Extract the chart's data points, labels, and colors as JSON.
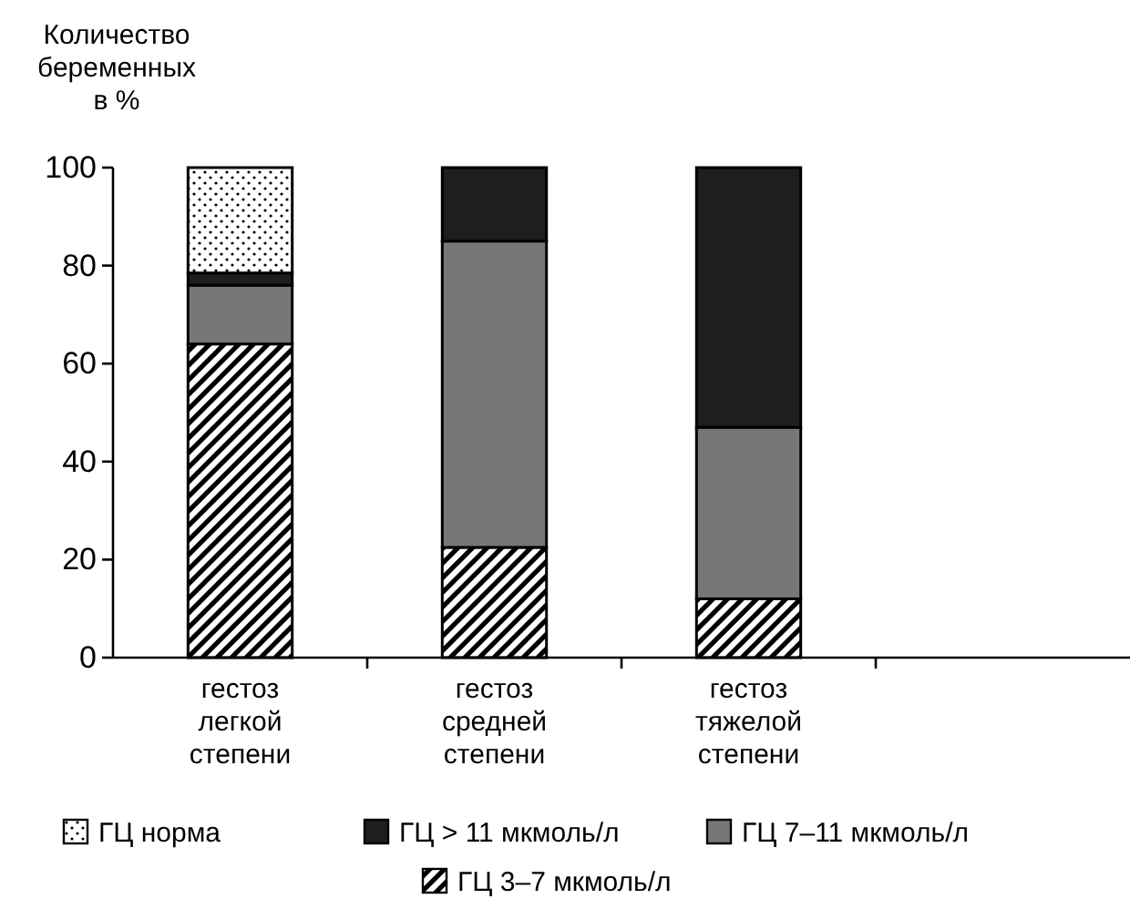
{
  "chart_data": {
    "type": "bar",
    "stacked": true,
    "ylabel": "Количество беременных в %",
    "categories": [
      "гестоз легкой степени",
      "гестоз средней степени",
      "гестоз тяжелой степени",
      null
    ],
    "ylim": [
      0,
      100
    ],
    "yticks": [
      0,
      20,
      40,
      60,
      80,
      100
    ],
    "grid": false,
    "legend": "bottom",
    "series": [
      {
        "name": "ГЦ 3–7 мкмоль/л",
        "color": "#000000",
        "values": [
          64,
          22.5,
          12,
          null
        ]
      },
      {
        "name": "ГЦ 7–11 мкмоль/л",
        "color": "#777777",
        "values": [
          12,
          62.5,
          35,
          null
        ]
      },
      {
        "name": "ГЦ > 11 мкмоль/л",
        "color": "#1e1e1e",
        "values": [
          2.5,
          15,
          53,
          null
        ]
      },
      {
        "name": "ГЦ норма",
        "color": "#000000",
        "values": [
          21.5,
          0,
          0,
          null
        ]
      }
    ]
  }
}
